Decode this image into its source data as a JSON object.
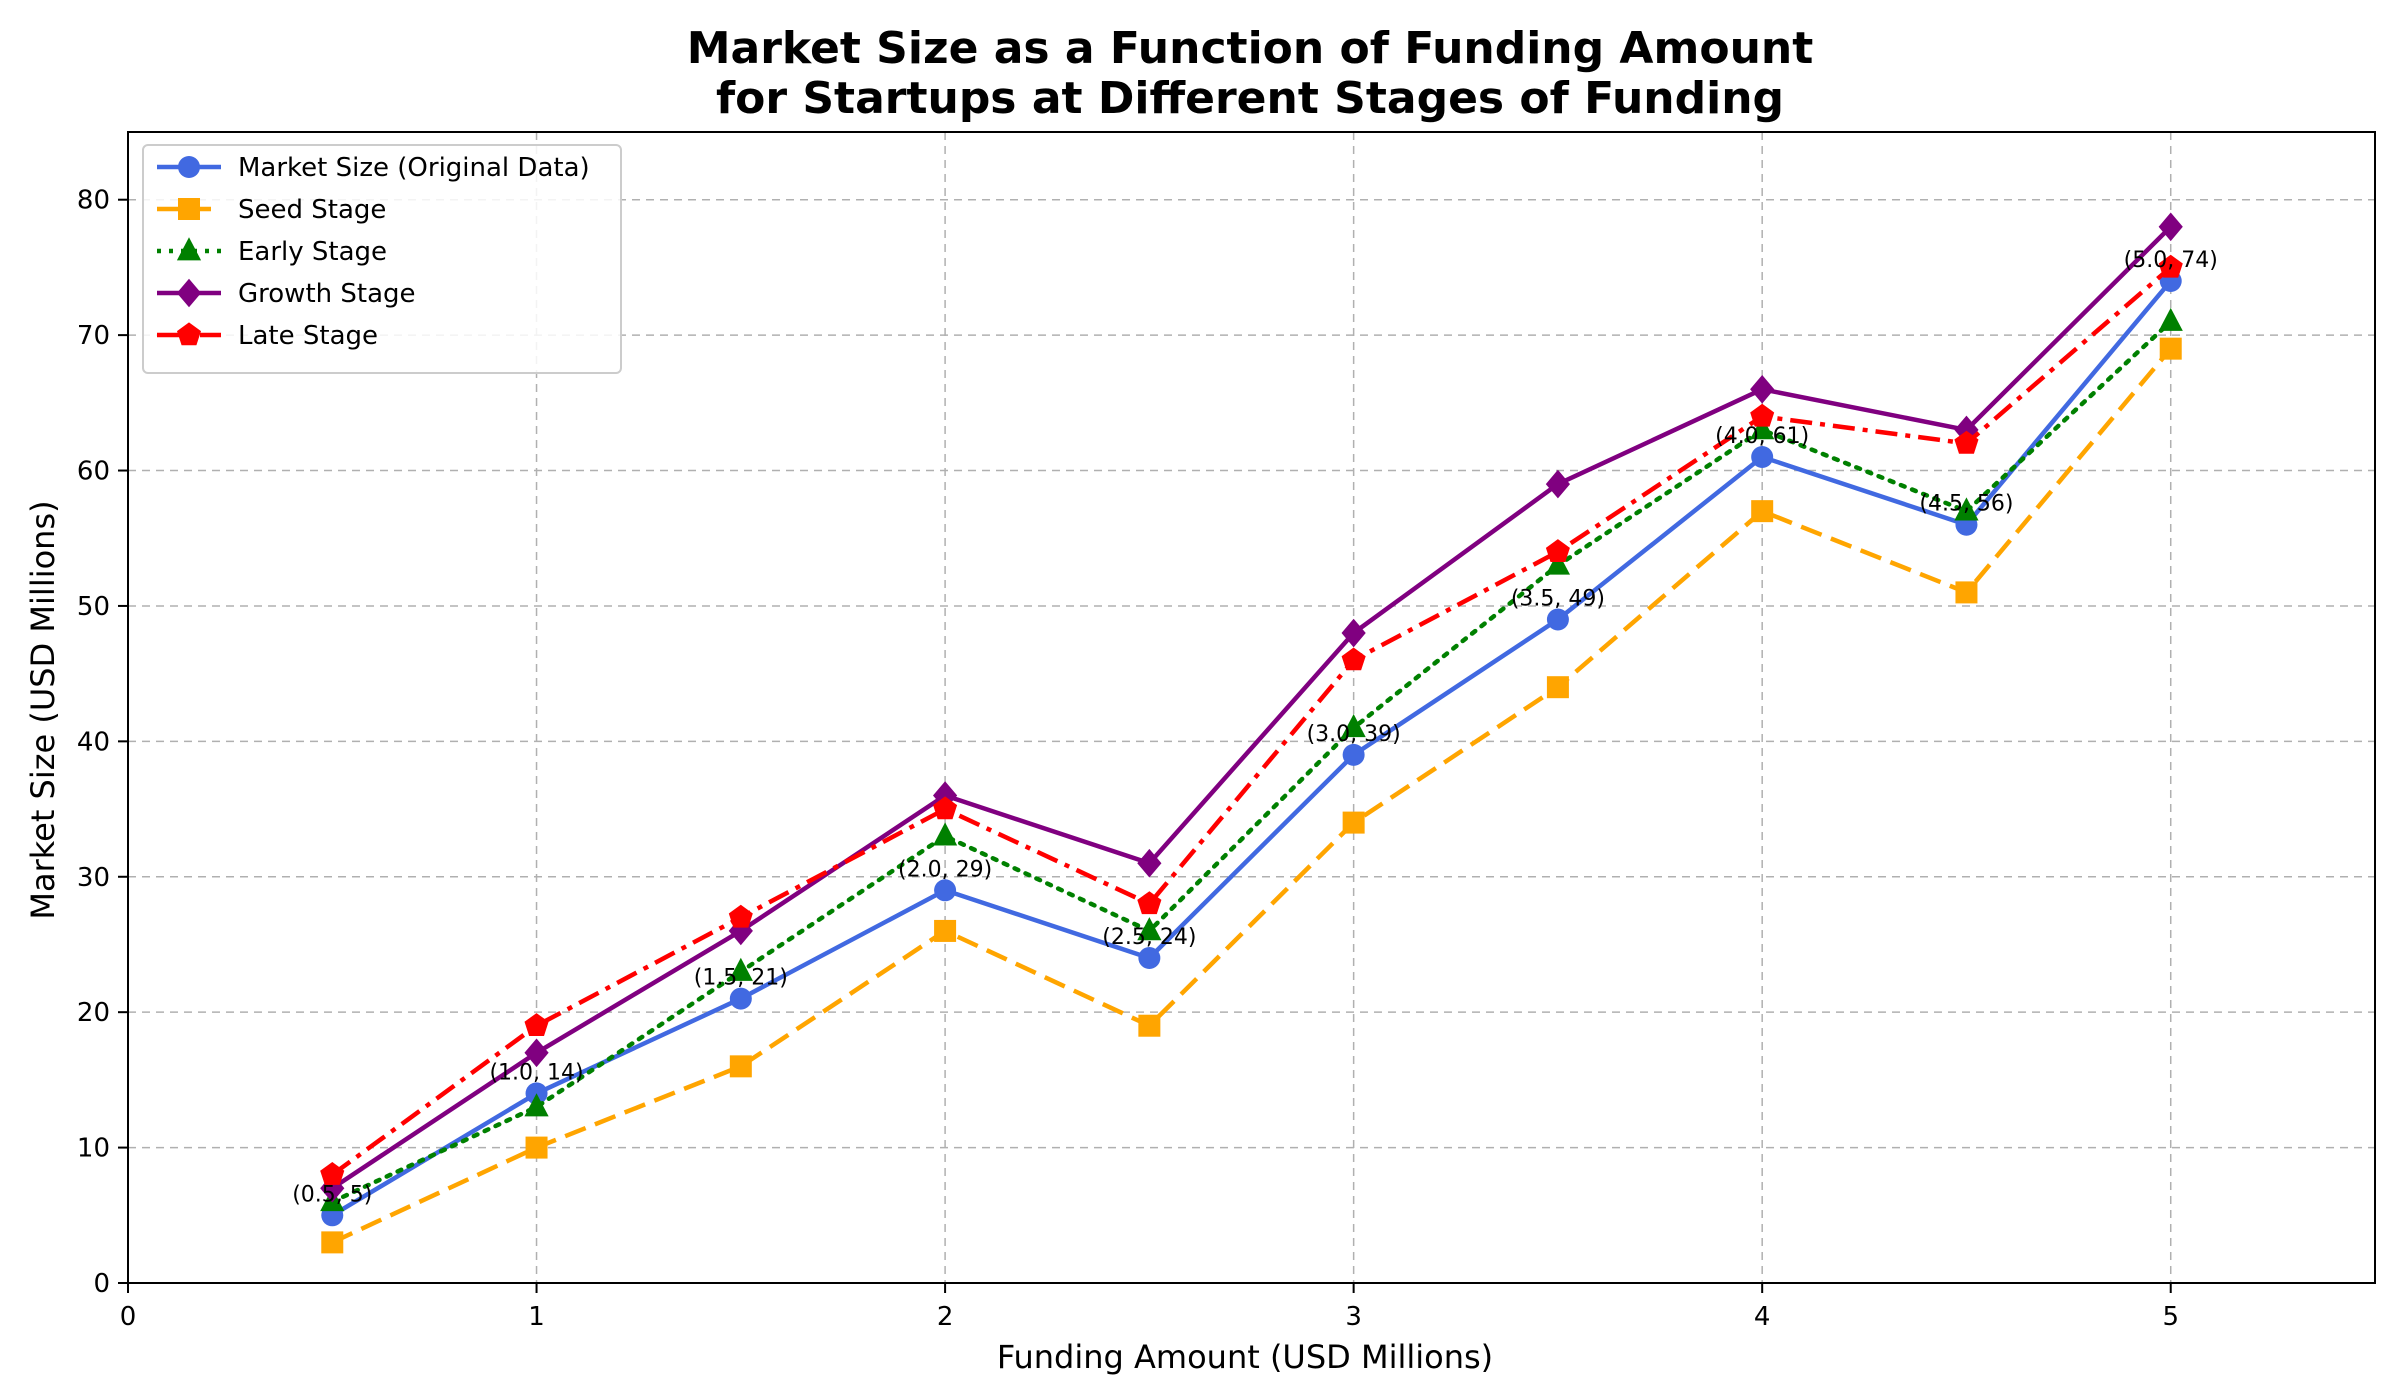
{
  "chart_data": {
    "type": "line",
    "title_lines": [
      "Market Size as a Function of Funding Amount",
      "for Startups at Different Stages of Funding"
    ],
    "xlabel": "Funding Amount (USD Millions)",
    "ylabel": "Market Size (USD Millions)",
    "xlim": [
      0,
      5.5
    ],
    "ylim": [
      0,
      85
    ],
    "xticks": [
      0,
      1,
      2,
      3,
      4,
      5
    ],
    "yticks": [
      0,
      10,
      20,
      30,
      40,
      50,
      60,
      70,
      80
    ],
    "grid": true,
    "legend_position": "top-left",
    "x": [
      0.5,
      1.0,
      1.5,
      2.0,
      2.5,
      3.0,
      3.5,
      4.0,
      4.5,
      5.0
    ],
    "series": [
      {
        "name": "Market Size (Original Data)",
        "color": "#4169E1",
        "marker": "circle",
        "dash": "solid",
        "values": [
          5,
          14,
          21,
          29,
          24,
          39,
          49,
          61,
          56,
          74
        ]
      },
      {
        "name": "Seed Stage",
        "color": "#FFA500",
        "marker": "square",
        "dash": "dashed",
        "values": [
          3,
          10,
          16,
          26,
          19,
          34,
          44,
          57,
          51,
          69
        ]
      },
      {
        "name": "Early Stage",
        "color": "#008000",
        "marker": "triangle",
        "dash": "dotted",
        "values": [
          6,
          13,
          23,
          33,
          26,
          41,
          53,
          63,
          57,
          71
        ]
      },
      {
        "name": "Growth Stage",
        "color": "#800080",
        "marker": "diamond",
        "dash": "solid",
        "values": [
          7,
          17,
          26,
          36,
          31,
          48,
          59,
          66,
          63,
          78
        ]
      },
      {
        "name": "Late Stage",
        "color": "#FF0000",
        "marker": "pentagon",
        "dash": "dashdot",
        "values": [
          8,
          19,
          27,
          35,
          28,
          46,
          54,
          64,
          62,
          75
        ]
      }
    ],
    "annotations": [
      "(0.5, 5)",
      "(1.0, 14)",
      "(1.5, 21)",
      "(2.0, 29)",
      "(2.5, 24)",
      "(3.0, 39)",
      "(3.5, 49)",
      "(4.0, 61)",
      "(4.5, 56)",
      "(5.0, 74)"
    ]
  }
}
